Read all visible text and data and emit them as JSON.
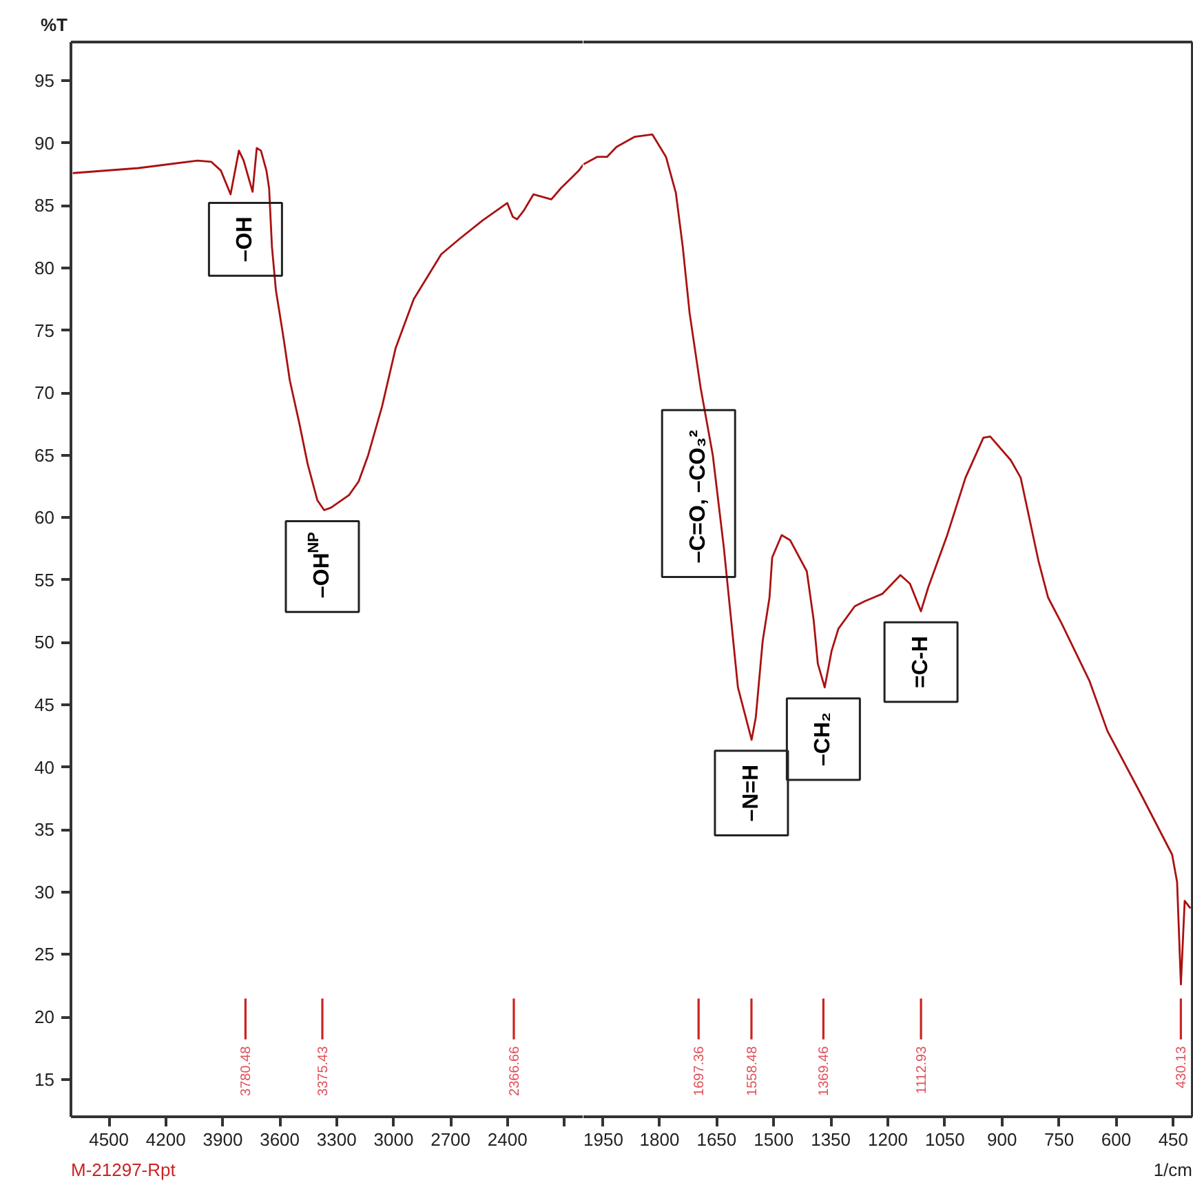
{
  "chart_data": [
    {
      "type": "line",
      "ylabel": "%T",
      "xlim": [
        4700,
        2000
      ],
      "ylim": [
        12,
        98.1
      ],
      "xticks": [
        4500,
        4200,
        3900,
        3600,
        3300,
        3000,
        2700,
        2400,
        {
          "value": 2100,
          "label": null
        }
      ],
      "yticks": [
        15,
        20,
        25,
        30,
        35,
        40,
        45,
        50,
        55,
        60,
        65,
        70,
        75,
        80,
        85,
        90,
        95
      ],
      "series": [
        {
          "color": "#aa1111",
          "values": [
            87.6,
            88.0,
            88.6,
            88.5,
            87.8,
            85.9,
            89.4,
            88.6,
            86.1,
            89.6,
            89.4,
            87.8,
            86.4,
            81.7,
            78.2,
            74.7,
            71.0,
            67.5,
            64.3,
            61.4,
            60.6,
            60.8,
            61.8,
            62.9,
            65.0,
            68.9,
            73.6,
            77.5,
            81.1,
            82.3,
            83.8,
            85.2,
            84.1,
            83.9,
            84.6,
            85.9,
            85.5,
            86.4,
            87.8,
            88.3
          ],
          "x": [
            4690,
            4345,
            4033,
            3960,
            3910,
            3859,
            3815,
            3790,
            3743,
            3721,
            3699,
            3670,
            3656,
            3641,
            3620,
            3583,
            3547,
            3496,
            3453,
            3402,
            3366,
            3330,
            3235,
            3184,
            3134,
            3061,
            2989,
            2894,
            2749,
            2655,
            2532,
            2401,
            2372,
            2350,
            2314,
            2263,
            2169,
            2118,
            2024,
            2000
          ]
        }
      ],
      "ref_lines": [
        {
          "axis": "x",
          "value": 3780.48,
          "label": "3780.48",
          "color": "#cc2222"
        },
        {
          "axis": "x",
          "value": 3375.43,
          "label": "3375.43",
          "color": "#cc2222"
        },
        {
          "axis": "x",
          "value": 2366.66,
          "label": "2366.66",
          "color": "#cc2222"
        }
      ],
      "annotations": [
        {
          "text": "–OH",
          "x": 3780.48,
          "y": 86.1
        },
        {
          "text": "–OH$^{NP}$",
          "x": 3375.43,
          "y": 60.6
        },
        "M-21297-Rpt"
      ]
    },
    {
      "type": "line",
      "xlabel": "1/cm",
      "tick_labels": "x",
      "xlim": [
        2000,
        400
      ],
      "ylim": [
        12,
        98.1
      ],
      "xticks": [
        1950,
        1800,
        1650,
        1500,
        1350,
        1200,
        1050,
        900,
        750,
        600,
        450
      ],
      "yticks": [
        15,
        20,
        25,
        30,
        35,
        40,
        45,
        50,
        55,
        60,
        65,
        70,
        75,
        80,
        85,
        90,
        95
      ],
      "series": [
        {
          "color": "#aa1111",
          "values": [
            88.3,
            88.9,
            88.9,
            89.7,
            90.5,
            90.7,
            88.9,
            86.0,
            81.7,
            76.4,
            70.4,
            65.0,
            57.6,
            46.4,
            42.2,
            44.0,
            50.1,
            53.6,
            56.8,
            58.6,
            58.2,
            55.7,
            51.8,
            48.3,
            46.4,
            49.3,
            51.1,
            52.9,
            53.3,
            53.9,
            55.4,
            54.7,
            52.5,
            54.4,
            58.6,
            63.2,
            66.4,
            66.5,
            64.6,
            63.2,
            56.5,
            53.6,
            51.5,
            46.9,
            42.9,
            37.9,
            33.0,
            30.8,
            22.6,
            29.3,
            28.7
          ],
          "x": [
            2000,
            1964,
            1938,
            1913,
            1866,
            1819,
            1783,
            1757,
            1739,
            1721,
            1692,
            1660,
            1631,
            1594,
            1558,
            1547,
            1529,
            1511,
            1504,
            1479,
            1457,
            1413,
            1395,
            1384,
            1366,
            1348,
            1330,
            1287,
            1261,
            1214,
            1167,
            1142,
            1113,
            1094,
            1044,
            996,
            949,
            931,
            877,
            851,
            804,
            779,
            743,
            670,
            623,
            536,
            453,
            440,
            430,
            420,
            405
          ]
        }
      ],
      "ref_lines": [
        {
          "axis": "x",
          "value": 1697.36,
          "label": "1697.36",
          "color": "#cc2222"
        },
        {
          "axis": "x",
          "value": 1558.48,
          "label": "1558.48",
          "color": "#cc2222"
        },
        {
          "axis": "x",
          "value": 1369.46,
          "label": "1369.46",
          "color": "#cc2222"
        },
        {
          "axis": "x",
          "value": 1112.93,
          "label": "1112.93",
          "color": "#cc2222"
        },
        {
          "axis": "x",
          "value": 430.13,
          "label": "430.13",
          "color": "#cc2222"
        }
      ],
      "annotations": [
        {
          "text": "–C=O,  –CO₃²",
          "x": 1697.36,
          "y": 69.5
        },
        {
          "text": "–N=H",
          "x": 1558.48,
          "y": 42.2
        },
        {
          "text": "–CH₂",
          "x": 1369.46,
          "y": 46.4
        },
        {
          "text": "=C-H",
          "x": 1112.93,
          "y": 52.5
        }
      ]
    }
  ]
}
